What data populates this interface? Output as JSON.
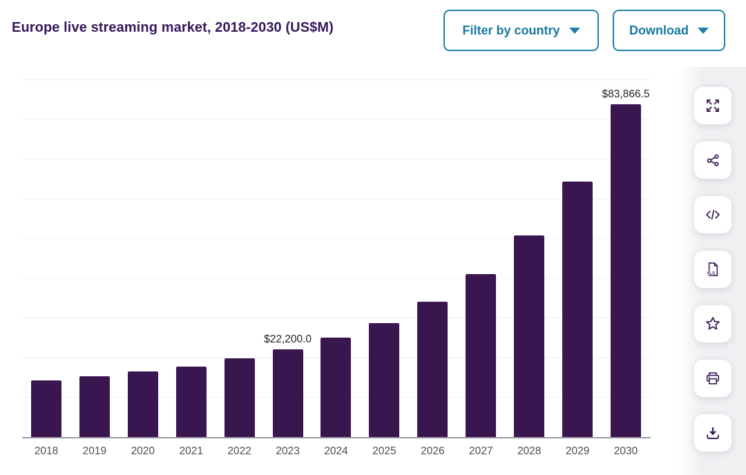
{
  "header": {
    "title": "Europe live streaming market, 2018-2030 (US$M)",
    "filter_button": {
      "label": "Filter by country",
      "icon": "chevron-down-icon"
    },
    "download_button": {
      "label": "Download",
      "icon": "chevron-down-icon"
    }
  },
  "toolbar": {
    "xls_label": "XLS",
    "icons": [
      "expand-icon",
      "share-icon",
      "embed-code-icon",
      "xls-file-icon",
      "star-icon",
      "printer-icon",
      "download-icon"
    ]
  },
  "colors": {
    "bar": "#3A1650",
    "title": "#36195A",
    "button_teal": "#1E7FA7",
    "icon_purple": "#3A1D55",
    "axis_gray": "#9e9aa4",
    "gridline": "#f2f0f4",
    "toolbar_bg": "#f0eff2"
  },
  "chart_data": {
    "type": "bar",
    "title": "Europe live streaming market, 2018-2030 (US$M)",
    "xlabel": "",
    "ylabel": "US$M",
    "categories": [
      2018,
      2019,
      2020,
      2021,
      2022,
      2023,
      2024,
      2025,
      2026,
      2027,
      2028,
      2029,
      2030
    ],
    "values": [
      14500,
      15400,
      16600,
      17900,
      19900,
      22200,
      25100,
      28900,
      34200,
      41200,
      50800,
      64500,
      83866.5
    ],
    "data_labels": {
      "2023": "$22,200.0",
      "2030": "$83,866.5"
    },
    "bar_color": "#3A1650",
    "ylim": [
      0,
      91000
    ],
    "gridlines": {
      "interval": 10000,
      "max": 90000,
      "visible": true
    },
    "y_axis_labels_visible": false,
    "legend": false
  }
}
